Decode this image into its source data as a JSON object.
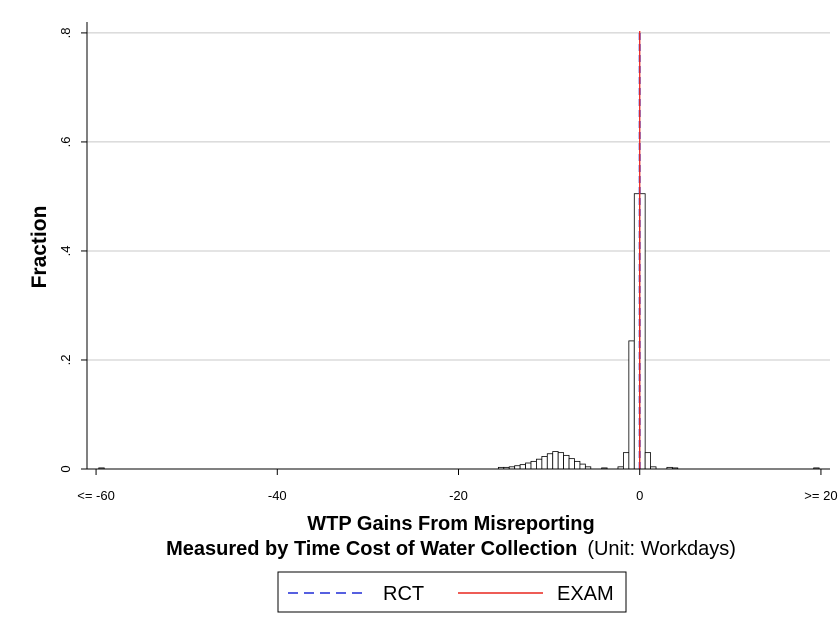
{
  "chart_data": {
    "type": "bar",
    "xlabel_line1": "WTP Gains From Misreporting",
    "xlabel_line2_bold": "Measured by Time Cost of Water Collection",
    "xlabel_line2_normal": "(Unit: Workdays)",
    "ylabel": "Fraction",
    "xlim": [
      -61,
      21
    ],
    "ylim": [
      0,
      0.82
    ],
    "x_ticks": [
      {
        "value": -60,
        "label": "<= -60"
      },
      {
        "value": -40,
        "label": "-40"
      },
      {
        "value": -20,
        "label": "-20"
      },
      {
        "value": 0,
        "label": "0"
      },
      {
        "value": 20,
        "label": ">= 20"
      }
    ],
    "y_ticks": [
      {
        "value": 0,
        "label": "0"
      },
      {
        "value": 0.2,
        "label": ".2"
      },
      {
        "value": 0.4,
        "label": ".4"
      },
      {
        "value": 0.6,
        "label": ".6"
      },
      {
        "value": 0.8,
        "label": ".8"
      }
    ],
    "grid": true,
    "bin_width": 0.6,
    "histogram": [
      {
        "x": -59.4,
        "y": 0.002
      },
      {
        "x": -15.3,
        "y": 0.003
      },
      {
        "x": -14.7,
        "y": 0.003
      },
      {
        "x": -14.1,
        "y": 0.004
      },
      {
        "x": -13.5,
        "y": 0.006
      },
      {
        "x": -12.9,
        "y": 0.008
      },
      {
        "x": -12.3,
        "y": 0.011
      },
      {
        "x": -11.7,
        "y": 0.014
      },
      {
        "x": -11.1,
        "y": 0.018
      },
      {
        "x": -10.5,
        "y": 0.023
      },
      {
        "x": -9.9,
        "y": 0.028
      },
      {
        "x": -9.3,
        "y": 0.032
      },
      {
        "x": -8.7,
        "y": 0.03
      },
      {
        "x": -8.1,
        "y": 0.025
      },
      {
        "x": -7.5,
        "y": 0.019
      },
      {
        "x": -6.9,
        "y": 0.014
      },
      {
        "x": -6.3,
        "y": 0.009
      },
      {
        "x": -5.7,
        "y": 0.004
      },
      {
        "x": -3.9,
        "y": 0.002
      },
      {
        "x": -2.1,
        "y": 0.004
      },
      {
        "x": -1.5,
        "y": 0.03
      },
      {
        "x": -0.9,
        "y": 0.235
      },
      {
        "x": -0.3,
        "y": 0.505
      },
      {
        "x": 0.3,
        "y": 0.505
      },
      {
        "x": 0.9,
        "y": 0.03
      },
      {
        "x": 1.5,
        "y": 0.004
      },
      {
        "x": 3.3,
        "y": 0.003
      },
      {
        "x": 3.9,
        "y": 0.002
      },
      {
        "x": 19.5,
        "y": 0.002
      }
    ],
    "vlines": [
      {
        "name": "RCT",
        "x": 0,
        "color": "#1f2bd6",
        "dashed": true
      },
      {
        "name": "EXAM",
        "x": 0,
        "color": "#e8261f",
        "dashed": false
      }
    ],
    "legend": {
      "position": "bottom-center",
      "items": [
        {
          "label": "RCT",
          "color": "#1f2bd6",
          "style": "dashed"
        },
        {
          "label": "EXAM",
          "color": "#e8261f",
          "style": "solid"
        }
      ]
    }
  }
}
